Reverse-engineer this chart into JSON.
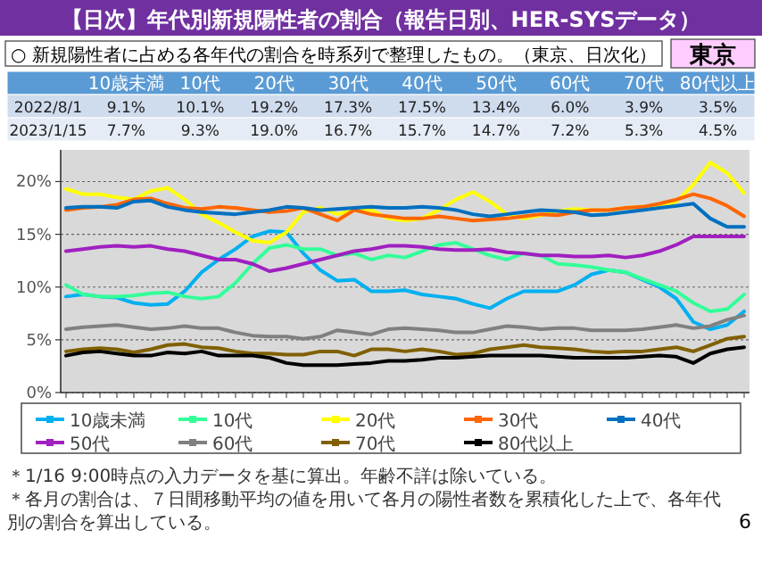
{
  "chart_data": {
    "type": "line",
    "title": "【日次】年代別新規陽性者の割合（報告日別、HER-SYSデータ）",
    "subtitle": "○ 新規陽性者に占める各年代の割合を時系列で整理したもの。（東京、日次化）",
    "categories": [
      null,
      null,
      null,
      null,
      null,
      null,
      null,
      null,
      null,
      null,
      null,
      null,
      null,
      null,
      null,
      null,
      null,
      null,
      null,
      null,
      null,
      null,
      null,
      null,
      null,
      null,
      null,
      null,
      null,
      null,
      null,
      null,
      null,
      null,
      null,
      null,
      null,
      null,
      null,
      null,
      null
    ],
    "series": [
      {
        "name": "10歳未満",
        "color": "#00b0f0",
        "values": [
          9.1,
          9.3,
          9.1,
          9.0,
          8.5,
          8.3,
          8.4,
          9.6,
          11.4,
          12.6,
          13.6,
          14.8,
          15.3,
          15.2,
          13.2,
          11.6,
          10.6,
          10.7,
          9.6,
          9.6,
          9.7,
          9.3,
          9.1,
          8.9,
          8.4,
          8.0,
          8.9,
          9.6,
          9.6,
          9.6,
          10.2,
          11.2,
          11.6,
          11.4,
          10.7,
          10.0,
          8.9,
          6.7,
          6.0,
          6.4,
          7.7
        ]
      },
      {
        "name": "10代",
        "color": "#33ff99",
        "values": [
          10.2,
          9.3,
          9.1,
          9.1,
          9.2,
          9.4,
          9.5,
          9.1,
          8.9,
          9.1,
          10.4,
          12.2,
          13.7,
          14.0,
          13.6,
          13.6,
          13.0,
          13.2,
          12.6,
          13.0,
          12.8,
          13.4,
          14.0,
          14.2,
          13.6,
          13.0,
          12.6,
          13.2,
          13.0,
          12.2,
          12.1,
          11.9,
          11.6,
          11.4,
          10.8,
          10.2,
          9.6,
          8.5,
          7.7,
          7.9,
          9.3
        ]
      },
      {
        "name": "20代",
        "color": "#ffff00",
        "values": [
          19.3,
          18.8,
          18.8,
          18.5,
          18.3,
          19.1,
          19.4,
          18.3,
          16.9,
          16.1,
          15.2,
          14.4,
          14.2,
          15.2,
          17.1,
          17.5,
          16.9,
          17.3,
          17.3,
          16.5,
          16.3,
          16.5,
          17.3,
          18.3,
          19.0,
          18.1,
          16.9,
          16.5,
          16.8,
          17.2,
          17.4,
          17.3,
          17.3,
          17.5,
          17.6,
          17.7,
          18.1,
          19.7,
          21.8,
          20.8,
          18.9
        ]
      },
      {
        "name": "30代",
        "color": "#ff6600",
        "values": [
          17.3,
          17.5,
          17.6,
          17.8,
          18.3,
          18.4,
          17.9,
          17.5,
          17.4,
          17.6,
          17.5,
          17.3,
          17.1,
          17.2,
          17.5,
          16.9,
          16.3,
          17.3,
          16.9,
          16.7,
          16.5,
          16.5,
          16.7,
          16.5,
          16.3,
          16.4,
          16.5,
          16.7,
          16.9,
          16.8,
          17.1,
          17.3,
          17.3,
          17.5,
          17.6,
          17.9,
          18.3,
          18.8,
          18.4,
          17.7,
          16.7
        ]
      },
      {
        "name": "40代",
        "color": "#0070c0",
        "values": [
          17.5,
          17.6,
          17.6,
          17.5,
          18.1,
          18.2,
          17.6,
          17.3,
          17.1,
          17.0,
          16.9,
          17.1,
          17.3,
          17.6,
          17.5,
          17.3,
          17.4,
          17.5,
          17.6,
          17.5,
          17.5,
          17.6,
          17.5,
          17.3,
          16.9,
          16.7,
          16.9,
          17.1,
          17.3,
          17.2,
          17.1,
          16.8,
          16.9,
          17.1,
          17.3,
          17.5,
          17.7,
          17.9,
          16.5,
          15.7,
          15.7
        ]
      },
      {
        "name": "50代",
        "color": "#a020c0",
        "values": [
          13.4,
          13.6,
          13.8,
          13.9,
          13.8,
          13.9,
          13.6,
          13.4,
          13.0,
          12.6,
          12.6,
          12.2,
          11.5,
          11.8,
          12.2,
          12.6,
          13.0,
          13.4,
          13.6,
          13.9,
          13.9,
          13.8,
          13.6,
          13.5,
          13.5,
          13.6,
          13.3,
          13.2,
          13.0,
          13.0,
          12.9,
          12.9,
          13.0,
          12.8,
          13.0,
          13.4,
          14.0,
          14.8,
          14.8,
          14.8,
          14.8
        ]
      },
      {
        "name": "60代",
        "color": "#808080",
        "values": [
          6.0,
          6.2,
          6.3,
          6.4,
          6.2,
          6.0,
          6.1,
          6.3,
          6.1,
          6.1,
          5.7,
          5.4,
          5.3,
          5.3,
          5.1,
          5.3,
          5.9,
          5.7,
          5.5,
          6.0,
          6.1,
          6.0,
          5.9,
          5.7,
          5.7,
          6.0,
          6.3,
          6.2,
          6.0,
          6.1,
          6.1,
          5.9,
          5.9,
          5.9,
          6.0,
          6.2,
          6.4,
          6.1,
          6.3,
          6.9,
          7.3
        ]
      },
      {
        "name": "70代",
        "color": "#806000",
        "values": [
          3.9,
          4.1,
          4.2,
          4.1,
          3.8,
          4.1,
          4.5,
          4.6,
          4.3,
          4.2,
          3.9,
          3.7,
          3.7,
          3.6,
          3.6,
          3.9,
          3.9,
          3.5,
          4.1,
          4.1,
          3.9,
          4.1,
          3.9,
          3.6,
          3.7,
          4.1,
          4.3,
          4.5,
          4.3,
          4.2,
          4.1,
          3.9,
          3.8,
          3.9,
          3.9,
          4.1,
          4.3,
          3.9,
          4.5,
          5.1,
          5.3
        ]
      },
      {
        "name": "80代以上",
        "color": "#000000",
        "values": [
          3.5,
          3.8,
          3.9,
          3.7,
          3.5,
          3.5,
          3.8,
          3.7,
          3.9,
          3.5,
          3.5,
          3.5,
          3.3,
          2.8,
          2.6,
          2.6,
          2.6,
          2.7,
          2.8,
          3.0,
          3.0,
          3.1,
          3.3,
          3.3,
          3.4,
          3.5,
          3.5,
          3.5,
          3.5,
          3.4,
          3.3,
          3.3,
          3.3,
          3.3,
          3.4,
          3.5,
          3.4,
          2.8,
          3.7,
          4.1,
          4.3
        ]
      }
    ],
    "ylim": [
      0,
      23
    ],
    "yticks": [
      {
        "value": 0,
        "label": "0%"
      },
      {
        "value": 5,
        "label": "5%"
      },
      {
        "value": 10,
        "label": "10%"
      },
      {
        "value": 15,
        "label": "15%"
      },
      {
        "value": 20,
        "label": "20%"
      }
    ],
    "grid": "y",
    "legend": "bottom",
    "annotations": [
      "10歳未満",
      "10代",
      "20代",
      "30代",
      "40代",
      "50代",
      "60代",
      "70代",
      "80代以上",
      "2022/8/1",
      "9.1%",
      "10.1%",
      "19.2%",
      "17.3%",
      "17.5%",
      "13.4%",
      "6.0%",
      "3.9%",
      "3.5%",
      "2023/1/15",
      "7.7%",
      "9.3%",
      "19.0%",
      "16.7%",
      "15.7%",
      "14.7%",
      "7.2%",
      "5.3%",
      "4.5%",
      "東京",
      "＊1/16 9:00時点の入力データを基に算出。年齢不詳は除いている。",
      "＊各月の割合は、７日間移動平均の値を用いて各月の陽性者数を累積化した上で、各年代別の割合を算出している。",
      "6"
    ]
  }
}
